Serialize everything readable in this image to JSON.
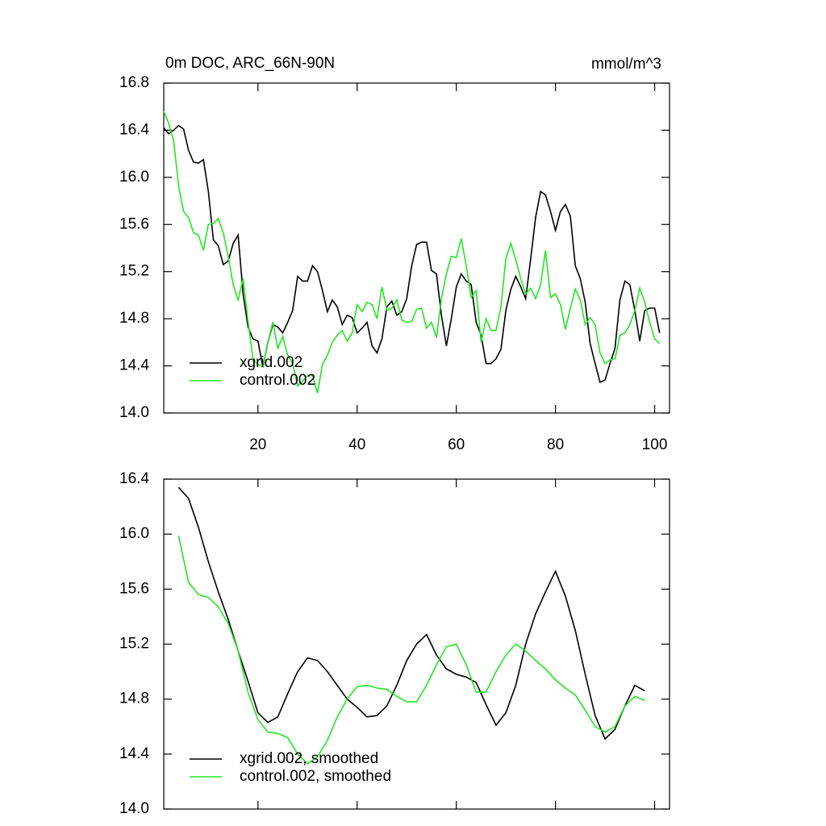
{
  "chart_data": [
    {
      "type": "line",
      "title": "0m DOC, ARC_66N-90N",
      "units": "mmol/m^3",
      "x": [
        1,
        2,
        3,
        4,
        5,
        6,
        7,
        8,
        9,
        10,
        11,
        12,
        13,
        14,
        15,
        16,
        17,
        18,
        19,
        20,
        21,
        22,
        23,
        24,
        25,
        26,
        27,
        28,
        29,
        30,
        31,
        32,
        33,
        34,
        35,
        36,
        37,
        38,
        39,
        40,
        41,
        42,
        43,
        44,
        45,
        46,
        47,
        48,
        49,
        50,
        51,
        52,
        53,
        54,
        55,
        56,
        57,
        58,
        59,
        60,
        61,
        62,
        63,
        64,
        65,
        66,
        67,
        68,
        69,
        70,
        71,
        72,
        73,
        74,
        75,
        76,
        77,
        78,
        79,
        80,
        81,
        82,
        83,
        84,
        85,
        86,
        87,
        88,
        89,
        90,
        91,
        92,
        93,
        94,
        95,
        96,
        97,
        98,
        99,
        100,
        101
      ],
      "series": [
        {
          "name": "xgrid.002",
          "color": "#000000",
          "values": [
            16.42,
            16.37,
            16.4,
            16.44,
            16.41,
            16.23,
            16.13,
            16.12,
            16.15,
            15.88,
            15.47,
            15.42,
            15.26,
            15.29,
            15.44,
            15.51,
            15.01,
            14.73,
            14.63,
            14.61,
            14.39,
            14.6,
            14.75,
            14.73,
            14.68,
            14.77,
            14.87,
            15.16,
            15.12,
            15.12,
            15.25,
            15.2,
            15.04,
            14.86,
            14.96,
            14.9,
            14.75,
            14.83,
            14.81,
            14.68,
            14.72,
            14.77,
            14.57,
            14.51,
            14.63,
            14.9,
            14.95,
            14.83,
            14.86,
            14.97,
            15.25,
            15.43,
            15.45,
            15.45,
            15.21,
            15.18,
            14.83,
            14.57,
            14.8,
            15.07,
            15.18,
            15.12,
            15.09,
            14.77,
            14.66,
            14.42,
            14.42,
            14.46,
            14.54,
            14.87,
            15.05,
            15.16,
            15.07,
            14.97,
            15.31,
            15.66,
            15.88,
            15.85,
            15.71,
            15.55,
            15.71,
            15.77,
            15.67,
            15.25,
            15.14,
            14.94,
            14.59,
            14.42,
            14.26,
            14.28,
            14.42,
            14.55,
            14.96,
            15.12,
            15.09,
            14.87,
            14.61,
            14.87,
            14.89,
            14.89,
            14.68
          ]
        },
        {
          "name": "control.002",
          "color": "#22e822",
          "values": [
            16.56,
            16.46,
            16.31,
            15.93,
            15.71,
            15.66,
            15.53,
            15.51,
            15.38,
            15.6,
            15.61,
            15.65,
            15.53,
            15.33,
            15.09,
            14.96,
            15.14,
            14.78,
            14.46,
            14.41,
            14.39,
            14.6,
            14.77,
            14.55,
            14.65,
            14.49,
            14.42,
            14.23,
            14.27,
            14.32,
            14.32,
            14.17,
            14.41,
            14.49,
            14.6,
            14.66,
            14.7,
            14.61,
            14.68,
            14.92,
            14.86,
            14.94,
            14.92,
            14.8,
            15.07,
            14.87,
            14.89,
            14.96,
            14.79,
            14.77,
            14.78,
            14.88,
            14.89,
            14.72,
            14.77,
            14.64,
            14.97,
            15.18,
            15.33,
            15.32,
            15.48,
            15.25,
            14.98,
            15.04,
            14.6,
            14.8,
            14.7,
            14.7,
            14.9,
            15.31,
            15.44,
            15.3,
            15.14,
            15.01,
            15.06,
            14.97,
            15.09,
            15.38,
            14.98,
            15.01,
            14.92,
            14.71,
            14.89,
            15.05,
            14.96,
            14.75,
            14.81,
            14.75,
            14.51,
            14.42,
            14.45,
            14.46,
            14.66,
            14.68,
            14.75,
            14.87,
            15.06,
            14.94,
            14.77,
            14.63,
            14.59
          ]
        }
      ],
      "xlim": [
        1,
        103
      ],
      "xticks": [
        20,
        40,
        60,
        80,
        100
      ],
      "ylim": [
        14,
        16.8
      ],
      "yticks": [
        {
          "value": 14,
          "label": "14.0"
        },
        14.4,
        14.8,
        15.2,
        15.6,
        {
          "value": 16,
          "label": "16.0"
        },
        16.4,
        16.8
      ],
      "legend": "lower left"
    },
    {
      "type": "line",
      "x": [
        4,
        6,
        8,
        10,
        12,
        14,
        16,
        18,
        20,
        22,
        24,
        26,
        28,
        30,
        32,
        34,
        36,
        38,
        40,
        42,
        44,
        46,
        48,
        50,
        52,
        54,
        56,
        58,
        60,
        62,
        64,
        66,
        68,
        70,
        72,
        74,
        76,
        78,
        80,
        82,
        84,
        86,
        88,
        90,
        92,
        94,
        96,
        98
      ],
      "series": [
        {
          "name": "xgrid.002, smoothed",
          "color": "#000000",
          "values": [
            16.34,
            16.26,
            16.05,
            15.8,
            15.58,
            15.38,
            15.15,
            14.93,
            14.7,
            14.63,
            14.67,
            14.84,
            15.0,
            15.1,
            15.08,
            15.0,
            14.9,
            14.8,
            14.74,
            14.67,
            14.68,
            14.75,
            14.9,
            15.08,
            15.2,
            15.27,
            15.12,
            15.02,
            14.98,
            14.96,
            14.92,
            14.76,
            14.61,
            14.7,
            14.9,
            15.2,
            15.42,
            15.58,
            15.73,
            15.55,
            15.3,
            14.98,
            14.68,
            14.51,
            14.58,
            14.75,
            14.9,
            14.86
          ]
        },
        {
          "name": "control.002, smoothed",
          "color": "#22e822",
          "values": [
            15.99,
            15.65,
            15.56,
            15.54,
            15.47,
            15.35,
            15.15,
            14.85,
            14.65,
            14.56,
            14.55,
            14.52,
            14.4,
            14.33,
            14.38,
            14.5,
            14.67,
            14.8,
            14.89,
            14.9,
            14.88,
            14.87,
            14.82,
            14.78,
            14.78,
            14.9,
            15.05,
            15.18,
            15.2,
            15.05,
            14.85,
            14.85,
            15.0,
            15.12,
            15.2,
            15.15,
            15.08,
            15.02,
            14.94,
            14.88,
            14.83,
            14.72,
            14.6,
            14.56,
            14.6,
            14.75,
            14.82,
            14.79
          ]
        }
      ],
      "xlim": [
        1,
        103
      ],
      "ylim": [
        14,
        16.4
      ],
      "yticks": [
        {
          "value": 14,
          "label": "14.0"
        },
        14.4,
        14.8,
        15.2,
        15.6,
        {
          "value": 16,
          "label": "16.0"
        },
        16.4
      ],
      "legend": "lower left"
    }
  ]
}
